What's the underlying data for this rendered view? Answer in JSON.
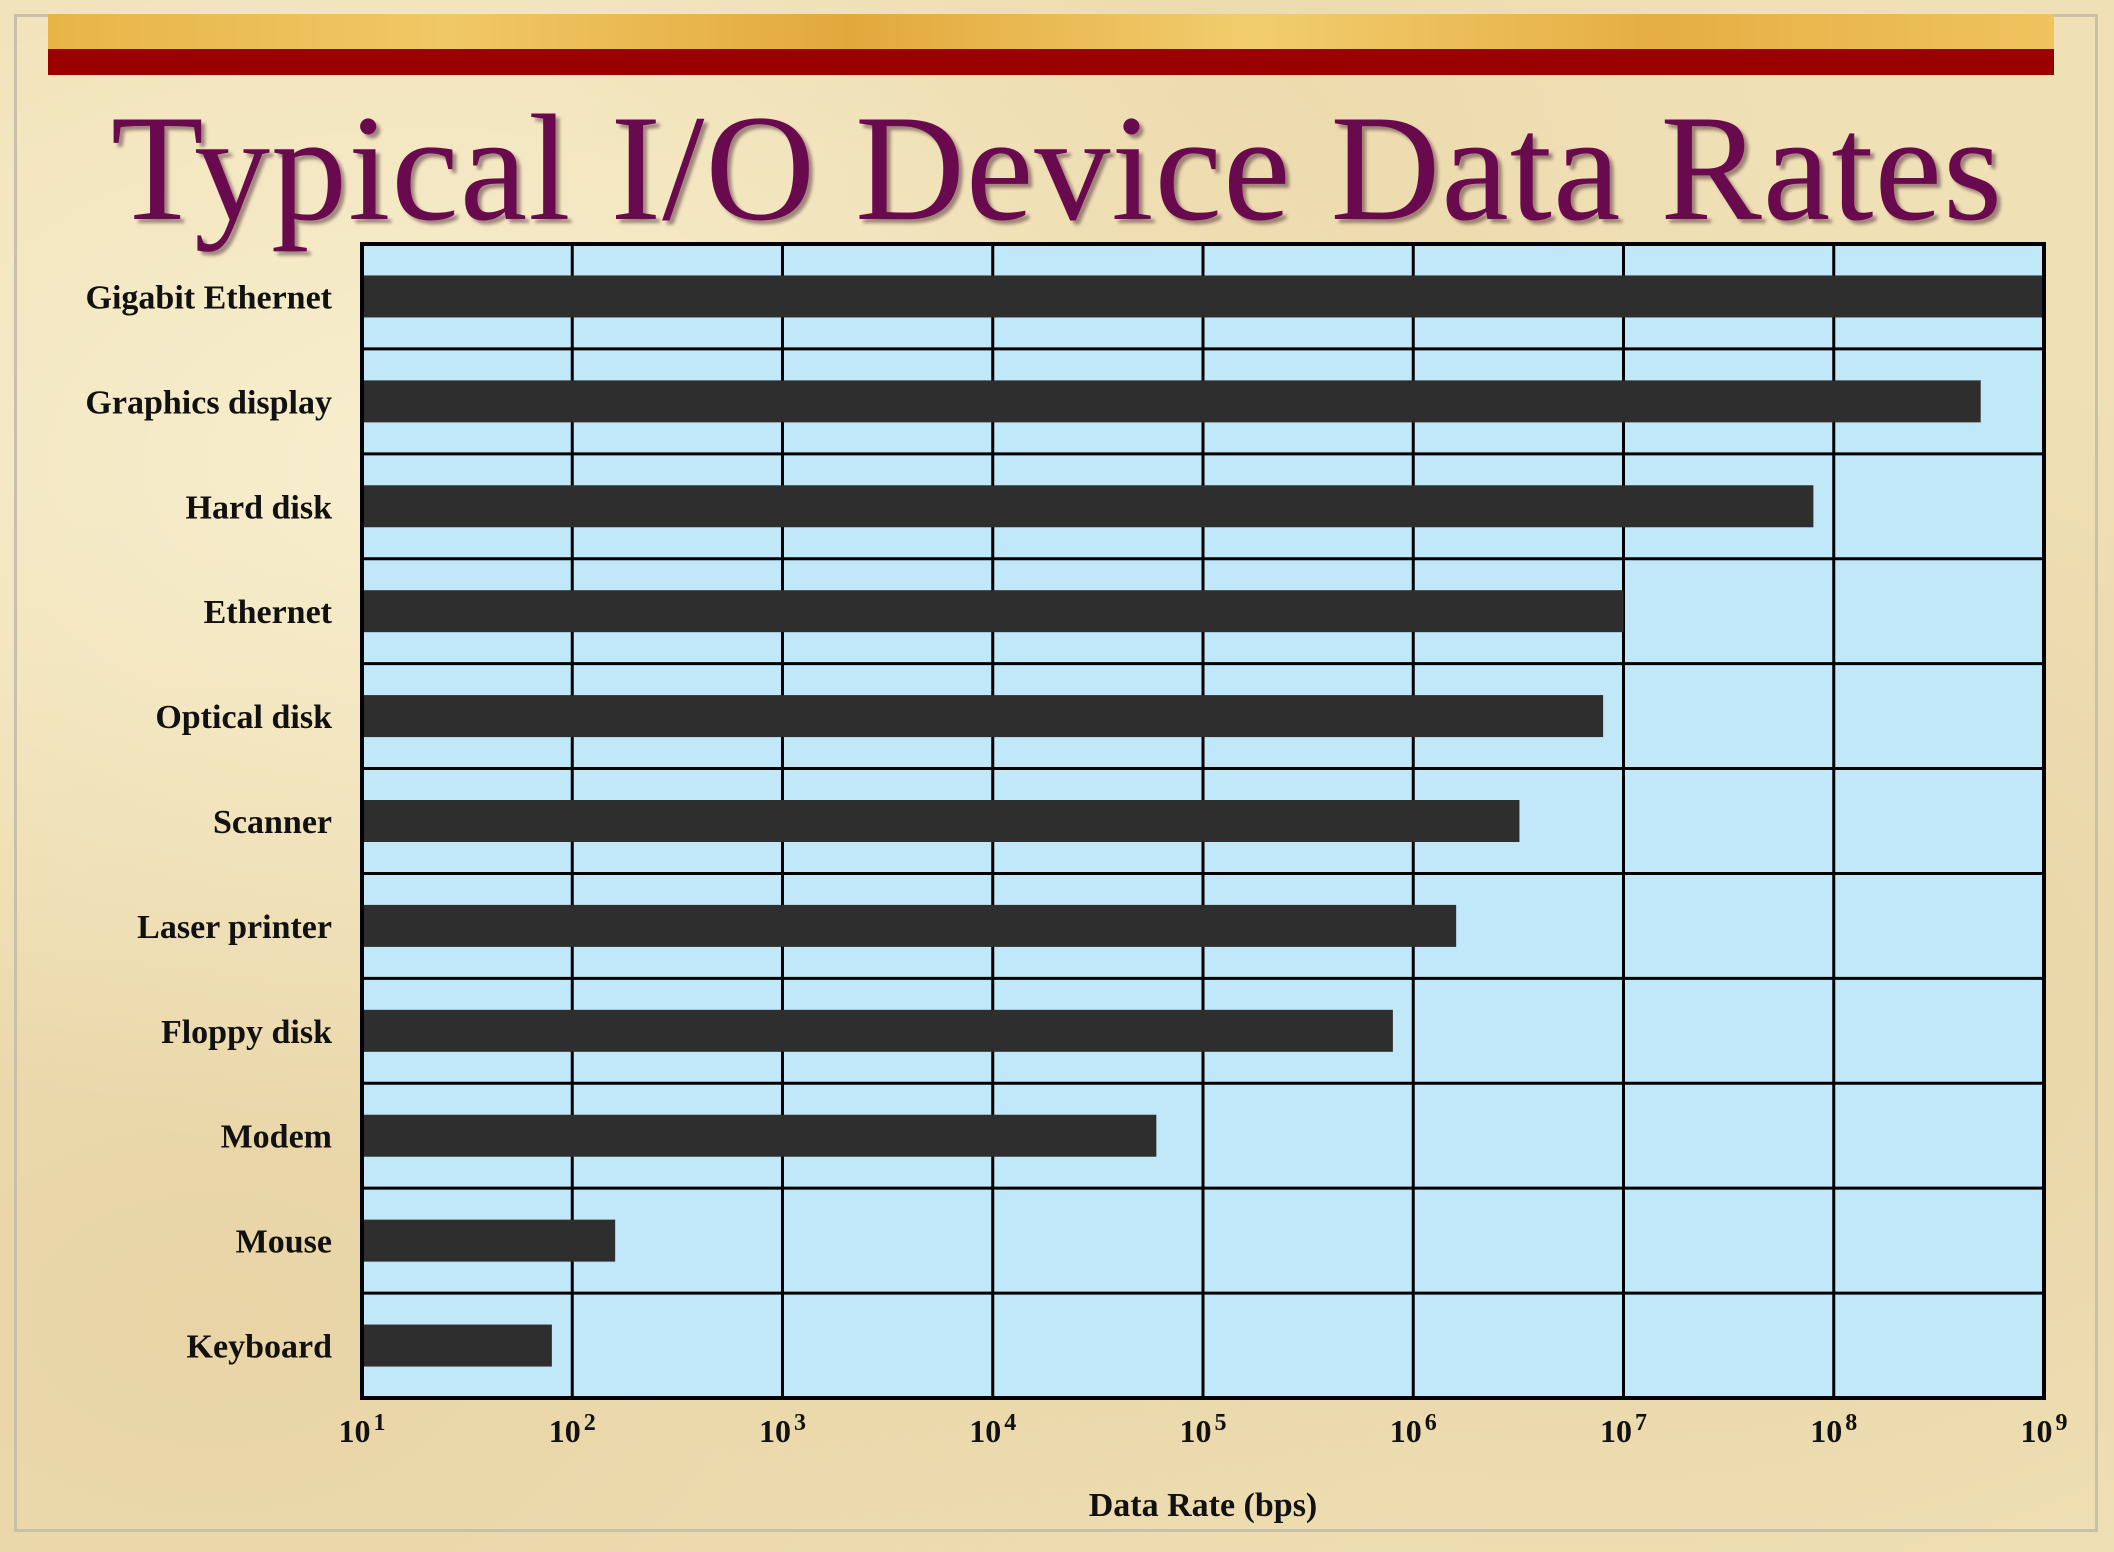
{
  "title": "Typical I/O Device Data Rates",
  "colors": {
    "plot_background": "#c0e8f8",
    "bar": "#2e2e2e",
    "grid": "#000000",
    "title": "#6a0a4e",
    "accent_bar": "#9a0000"
  },
  "chart_data": {
    "type": "bar",
    "orientation": "horizontal",
    "title": "Typical I/O Device Data Rates",
    "xlabel": "Data Rate (bps)",
    "ylabel": "",
    "x_scale": "log",
    "xlim": [
      10,
      1000000000
    ],
    "grid": true,
    "categories": [
      "Gigabit Ethernet",
      "Graphics display",
      "Hard disk",
      "Ethernet",
      "Optical disk",
      "Scanner",
      "Laser  printer",
      "Floppy disk",
      "Modem",
      "Mouse",
      "Keyboard"
    ],
    "values": [
      1000000000,
      500000000,
      80000000,
      10000000,
      8000000,
      3200000,
      1600000,
      800000,
      60000,
      160,
      80
    ],
    "ticks": [
      {
        "base": "10",
        "exp": "1"
      },
      {
        "base": "10",
        "exp": "2"
      },
      {
        "base": "10",
        "exp": "3"
      },
      {
        "base": "10",
        "exp": "4"
      },
      {
        "base": "10",
        "exp": "5"
      },
      {
        "base": "10",
        "exp": "6"
      },
      {
        "base": "10",
        "exp": "7"
      },
      {
        "base": "10",
        "exp": "8"
      },
      {
        "base": "10",
        "exp": "9"
      }
    ]
  }
}
